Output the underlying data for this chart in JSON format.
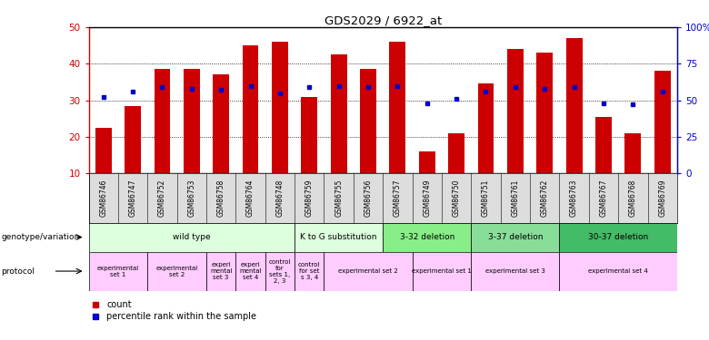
{
  "title": "GDS2029 / 6922_at",
  "samples": [
    "GSM86746",
    "GSM86747",
    "GSM86752",
    "GSM86753",
    "GSM86758",
    "GSM86764",
    "GSM86748",
    "GSM86759",
    "GSM86755",
    "GSM86756",
    "GSM86757",
    "GSM86749",
    "GSM86750",
    "GSM86751",
    "GSM86761",
    "GSM86762",
    "GSM86763",
    "GSM86767",
    "GSM86768",
    "GSM86769"
  ],
  "counts": [
    22.5,
    28.5,
    38.5,
    38.5,
    37.0,
    45.0,
    46.0,
    31.0,
    42.5,
    38.5,
    46.0,
    16.0,
    21.0,
    34.5,
    44.0,
    43.0,
    47.0,
    25.5,
    21.0,
    38.0
  ],
  "percentile_raw": [
    52,
    56,
    59,
    58,
    57,
    60,
    55,
    59,
    60,
    59,
    60,
    48,
    51,
    56,
    59,
    58,
    59,
    48,
    47,
    56
  ],
  "bar_color": "#cc0000",
  "dot_color": "#0000cc",
  "ymin": 10,
  "ymax": 50,
  "yticks_left": [
    10,
    20,
    30,
    40,
    50
  ],
  "yticks_right": [
    0,
    25,
    50,
    75,
    100
  ],
  "genotype_groups": [
    {
      "label": "wild type",
      "start": 0,
      "end": 7,
      "color": "#ddffdd"
    },
    {
      "label": "K to G substitution",
      "start": 7,
      "end": 10,
      "color": "#ddffdd"
    },
    {
      "label": "3-32 deletion",
      "start": 10,
      "end": 13,
      "color": "#88ee88"
    },
    {
      "label": "3-37 deletion",
      "start": 13,
      "end": 16,
      "color": "#88dd99"
    },
    {
      "label": "30-37 deletion",
      "start": 16,
      "end": 20,
      "color": "#44bb66"
    }
  ],
  "protocol_groups": [
    {
      "label": "experimental\nset 1",
      "start": 0,
      "end": 2
    },
    {
      "label": "experimental\nset 2",
      "start": 2,
      "end": 4
    },
    {
      "label": "experi\nmental\nset 3",
      "start": 4,
      "end": 5
    },
    {
      "label": "experi\nmental\nset 4",
      "start": 5,
      "end": 6
    },
    {
      "label": "control\nfor\nsets 1,\n2, 3",
      "start": 6,
      "end": 7
    },
    {
      "label": "control\nfor set\ns 3, 4",
      "start": 7,
      "end": 8
    },
    {
      "label": "experimental set 2",
      "start": 8,
      "end": 11
    },
    {
      "label": "experimental set 1",
      "start": 11,
      "end": 13
    },
    {
      "label": "experimental set 3",
      "start": 13,
      "end": 16
    },
    {
      "label": "experimental set 4",
      "start": 16,
      "end": 20
    }
  ],
  "bar_color_red": "#cc0000",
  "dot_color_blue": "#0000cc",
  "ylabel_left_color": "#cc0000",
  "ylabel_right_color": "#0000cc",
  "protocol_color": "#ffccff",
  "sample_bg_color": "#dddddd",
  "grid_color": "black",
  "spine_color": "black"
}
